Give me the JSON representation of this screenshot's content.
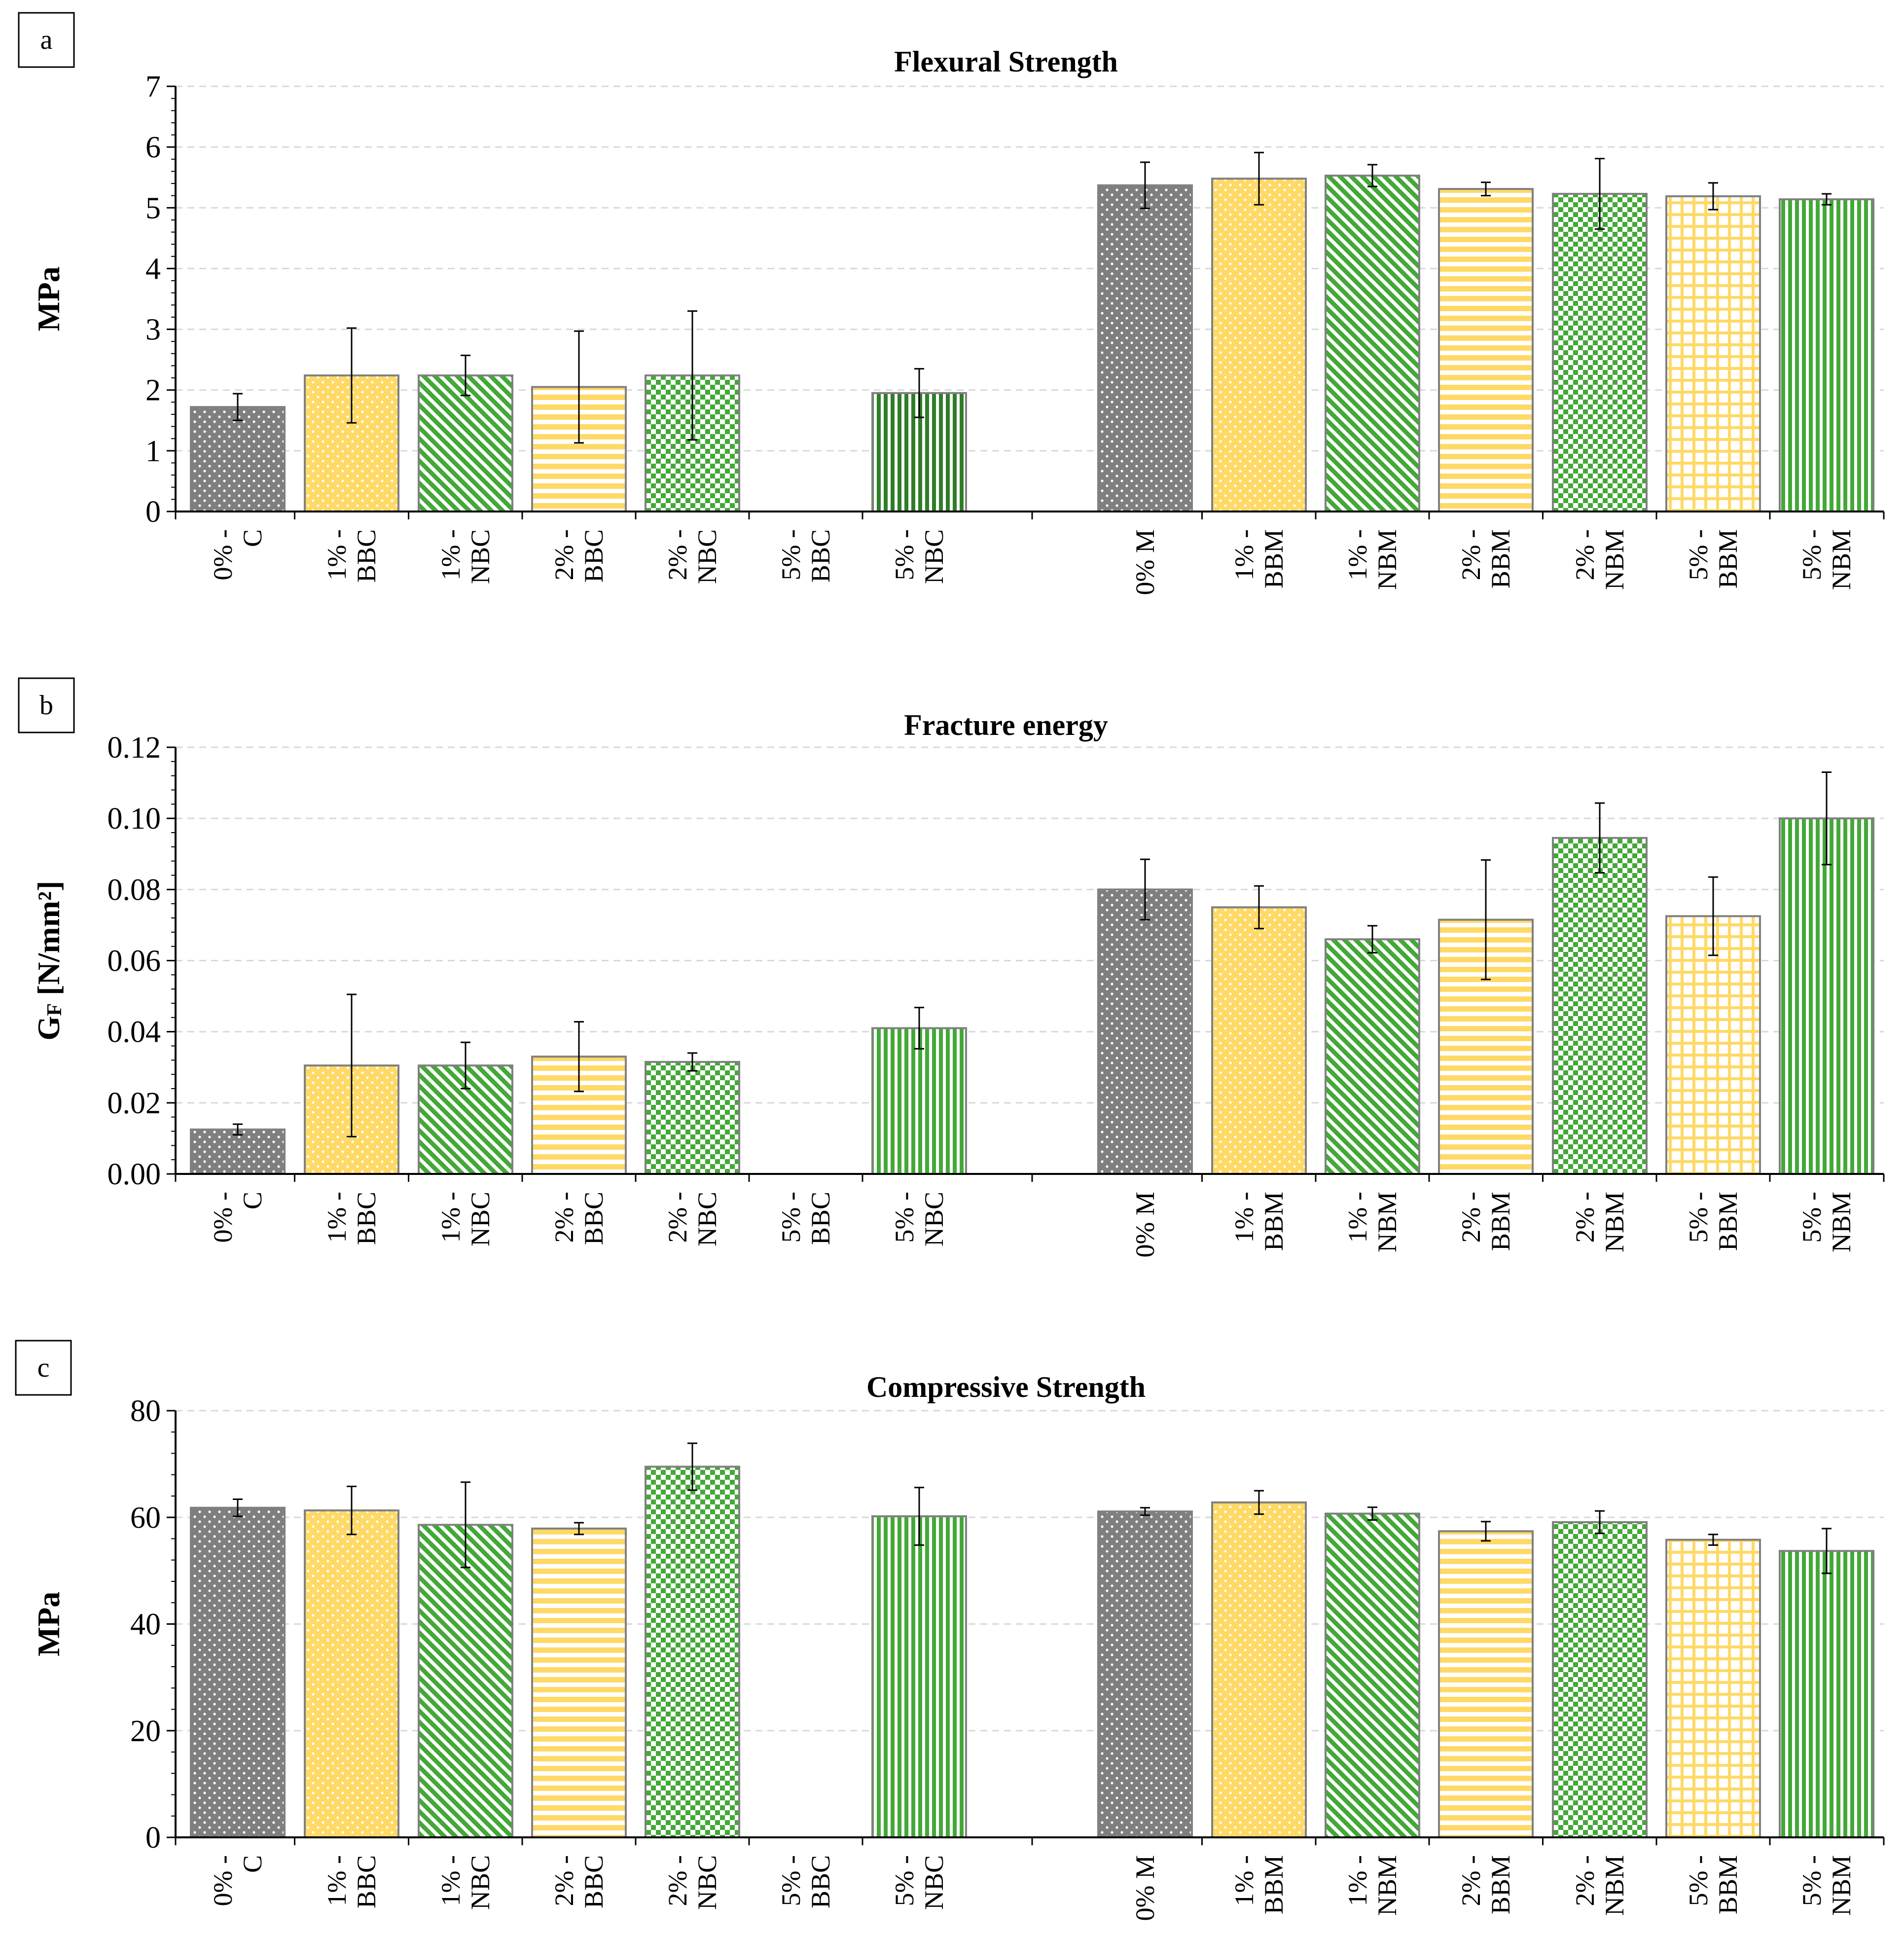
{
  "panels": [
    {
      "letter": "a"
    },
    {
      "letter": "b"
    },
    {
      "letter": "c"
    }
  ],
  "colors": {
    "gray": "#7f7f7f",
    "yellow": "#ffd966",
    "green": "#43a837",
    "dark_green": "#2e7d27",
    "bar_border": "#808080",
    "grid": "#d9d9d9"
  },
  "chart_data": [
    {
      "type": "bar",
      "title": "Flexural Strength",
      "ylabel": "MPa",
      "ylim": [
        0,
        7
      ],
      "yticks": [
        "0",
        "1",
        "2",
        "3",
        "4",
        "5",
        "6",
        "7"
      ],
      "grid": true,
      "categories": [
        [
          "0% -",
          "C"
        ],
        [
          "1% -",
          "BBC"
        ],
        [
          "1% -",
          "NBC"
        ],
        [
          "2% -",
          "BBC"
        ],
        [
          "2% -",
          "NBC"
        ],
        [
          "5% -",
          "BBC"
        ],
        [
          "5% -",
          "NBC"
        ],
        [
          "0% M"
        ],
        [
          "1% -",
          "BBM"
        ],
        [
          "1% -",
          "NBM"
        ],
        [
          "2% -",
          "BBM"
        ],
        [
          "2% -",
          "NBM"
        ],
        [
          "5% -",
          "BBM"
        ],
        [
          "5% -",
          "NBM"
        ]
      ],
      "values": [
        1.72,
        2.24,
        2.24,
        2.05,
        2.24,
        null,
        1.95,
        5.37,
        5.48,
        5.53,
        5.31,
        5.23,
        5.19,
        5.14
      ],
      "errors": [
        0.22,
        0.78,
        0.33,
        0.92,
        1.06,
        null,
        0.4,
        0.38,
        0.43,
        0.18,
        0.11,
        0.58,
        0.22,
        0.09
      ],
      "patterns": [
        "dots-gray",
        "dots-yellow",
        "diag-green",
        "hlines-yellow",
        "checker-green",
        "none",
        "vlines-darkgreen",
        "dots-gray",
        "dots-yellow",
        "diag-green",
        "hlines-yellow",
        "checker-green",
        "grid-yellow",
        "vlines-green"
      ]
    },
    {
      "type": "bar",
      "title": "Fracture energy",
      "ylabel_main": "G",
      "ylabel_sub": "F",
      "ylabel_rest": " [N/mm²]",
      "ylim": [
        0,
        0.12
      ],
      "yticks": [
        "0.00",
        "0.02",
        "0.04",
        "0.06",
        "0.08",
        "0.10",
        "0.12"
      ],
      "grid": true,
      "categories": [
        [
          "0% -",
          "C"
        ],
        [
          "1% -",
          "BBC"
        ],
        [
          "1% -",
          "NBC"
        ],
        [
          "2% -",
          "BBC"
        ],
        [
          "2% -",
          "NBC"
        ],
        [
          "5% -",
          "BBC"
        ],
        [
          "5% -",
          "NBC"
        ],
        [
          "0% M"
        ],
        [
          "1% -",
          "BBM"
        ],
        [
          "1% -",
          "NBM"
        ],
        [
          "2% -",
          "BBM"
        ],
        [
          "2% -",
          "NBM"
        ],
        [
          "5% -",
          "BBM"
        ],
        [
          "5% -",
          "NBM"
        ]
      ],
      "values": [
        0.0125,
        0.0305,
        0.0305,
        0.033,
        0.0315,
        null,
        0.041,
        0.08,
        0.075,
        0.066,
        0.0715,
        0.0945,
        0.0725,
        0.1
      ],
      "errors": [
        0.0015,
        0.02,
        0.0065,
        0.0098,
        0.0025,
        null,
        0.0058,
        0.0085,
        0.006,
        0.0038,
        0.0168,
        0.0098,
        0.011,
        0.013
      ],
      "patterns": [
        "dots-gray",
        "dots-yellow",
        "diag-green",
        "hlines-yellow",
        "checker-green",
        "none",
        "vlines-green",
        "dots-gray",
        "dots-yellow",
        "diag-green",
        "hlines-yellow",
        "checker-green",
        "grid-yellow",
        "vlines-green"
      ]
    },
    {
      "type": "bar",
      "title": "Compressive Strength",
      "ylabel": "MPa",
      "ylim": [
        0,
        80
      ],
      "yticks": [
        "0",
        "20",
        "40",
        "60",
        "80"
      ],
      "grid": true,
      "categories": [
        [
          "0% -",
          "C"
        ],
        [
          "1% -",
          "BBC"
        ],
        [
          "1% -",
          "NBC"
        ],
        [
          "2% -",
          "BBC"
        ],
        [
          "2% -",
          "NBC"
        ],
        [
          "5% -",
          "BBC"
        ],
        [
          "5% -",
          "NBC"
        ],
        [
          "0% M"
        ],
        [
          "1% -",
          "BBM"
        ],
        [
          "1% -",
          "NBM"
        ],
        [
          "2% -",
          "BBM"
        ],
        [
          "2% -",
          "NBM"
        ],
        [
          "5% -",
          "BBM"
        ],
        [
          "5% -",
          "NBM"
        ]
      ],
      "values": [
        61.8,
        61.3,
        58.6,
        57.9,
        69.5,
        null,
        60.2,
        61.1,
        62.8,
        60.7,
        57.4,
        59.1,
        55.8,
        53.7
      ],
      "errors": [
        1.6,
        4.5,
        8.0,
        1.1,
        4.4,
        null,
        5.4,
        0.7,
        2.2,
        1.2,
        1.8,
        2.1,
        1.0,
        4.2
      ],
      "patterns": [
        "dots-gray",
        "dots-yellow",
        "diag-green",
        "hlines-yellow",
        "checker-green",
        "none",
        "vlines-green",
        "dots-gray",
        "dots-yellow",
        "diag-green",
        "hlines-yellow",
        "checker-green",
        "grid-yellow",
        "vlines-green"
      ]
    }
  ]
}
